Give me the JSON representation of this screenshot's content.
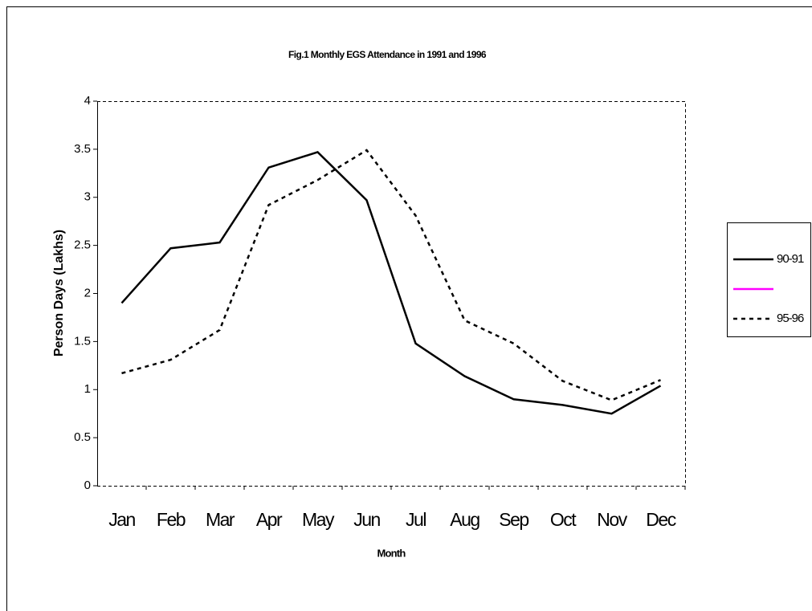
{
  "chart_data": {
    "type": "line",
    "title": "Fig.1 Monthly EGS Attendance in 1991 and 1996",
    "x_label": "Month",
    "y_label": "Person Days (Lakhs)",
    "categories": [
      "Jan",
      "Feb",
      "Mar",
      "Apr",
      "May",
      "Jun",
      "Jul",
      "Aug",
      "Sep",
      "Oct",
      "Nov",
      "Dec"
    ],
    "series": [
      {
        "name": "90-91",
        "color": "#000000",
        "dash": false,
        "values": [
          1.9,
          2.47,
          2.53,
          3.31,
          3.47,
          2.97,
          1.48,
          1.14,
          0.9,
          0.84,
          0.75,
          1.04
        ]
      },
      {
        "color": "#ff00ff",
        "dash": false,
        "values": [
          null,
          null,
          null,
          null,
          null,
          null,
          null,
          null,
          null,
          null,
          null,
          null
        ]
      },
      {
        "name": "95-96",
        "color": "#000000",
        "dash": true,
        "values": [
          1.17,
          1.31,
          1.62,
          2.92,
          3.18,
          3.49,
          2.81,
          1.72,
          1.48,
          1.09,
          0.89,
          1.1
        ]
      }
    ],
    "ylim": [
      0,
      4
    ],
    "yticks": [
      0,
      0.5,
      1,
      1.5,
      2,
      2.5,
      3,
      3.5,
      4
    ],
    "legend": "right"
  }
}
